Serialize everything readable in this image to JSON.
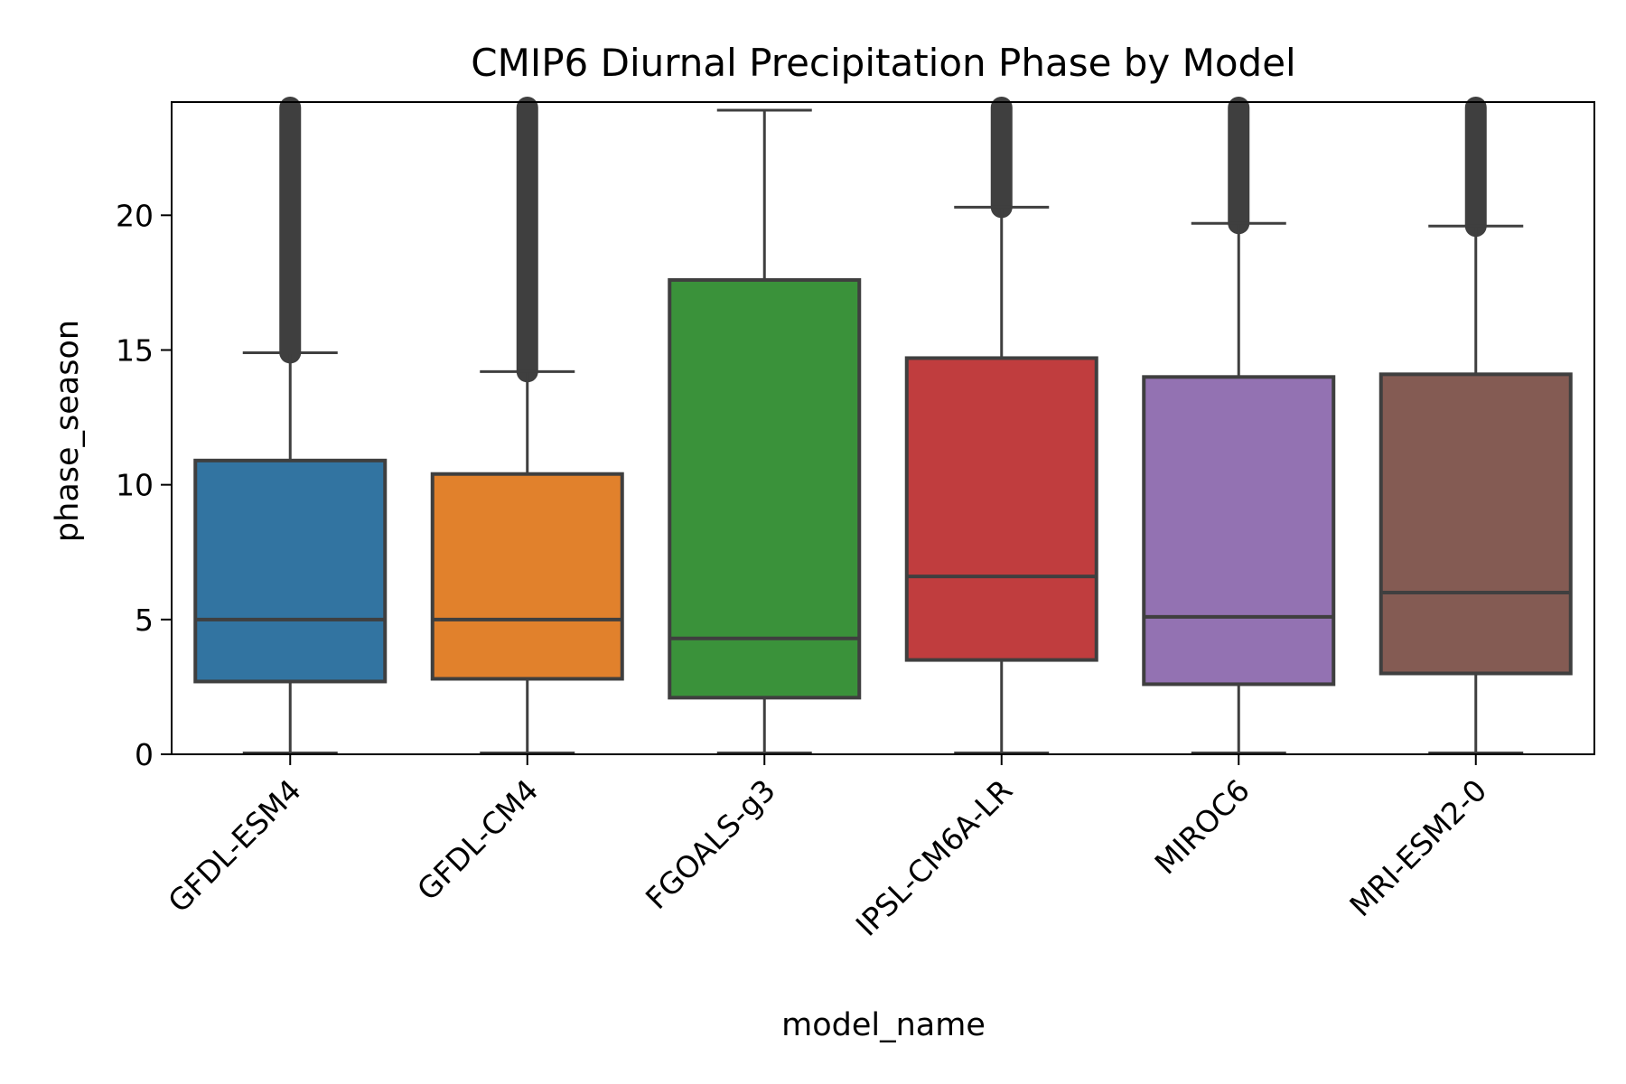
{
  "chart_data": {
    "type": "box",
    "title": "CMIP6 Diurnal Precipitation Phase by Model",
    "xlabel": "model_name",
    "ylabel": "phase_season",
    "ylim": [
      0,
      24.2
    ],
    "yticks": [
      0,
      5,
      10,
      15,
      20
    ],
    "grid": false,
    "legend": "none",
    "categories": [
      "GFDL-ESM4",
      "GFDL-CM4",
      "FGOALS-g3",
      "IPSL-CM6A-LR",
      "MIROC6",
      "MRI-ESM2-0"
    ],
    "boxes": [
      {
        "category": "GFDL-ESM4",
        "whisker_low": 0.05,
        "q1": 2.7,
        "median": 5.0,
        "q3": 10.9,
        "whisker_high": 14.9,
        "outliers_range": [
          14.9,
          24.0
        ],
        "color": "#3274a1"
      },
      {
        "category": "GFDL-CM4",
        "whisker_low": 0.05,
        "q1": 2.8,
        "median": 5.0,
        "q3": 10.4,
        "whisker_high": 14.2,
        "outliers_range": [
          14.2,
          24.0
        ],
        "color": "#e1812c"
      },
      {
        "category": "FGOALS-g3",
        "whisker_low": 0.05,
        "q1": 2.1,
        "median": 4.3,
        "q3": 17.6,
        "whisker_high": 23.9,
        "outliers_range": null,
        "color": "#3a923a"
      },
      {
        "category": "IPSL-CM6A-LR",
        "whisker_low": 0.05,
        "q1": 3.5,
        "median": 6.6,
        "q3": 14.7,
        "whisker_high": 20.3,
        "outliers_range": [
          20.3,
          24.0
        ],
        "color": "#c03d3e"
      },
      {
        "category": "MIROC6",
        "whisker_low": 0.05,
        "q1": 2.6,
        "median": 5.1,
        "q3": 14.0,
        "whisker_high": 19.7,
        "outliers_range": [
          19.7,
          24.0
        ],
        "color": "#9372b2"
      },
      {
        "category": "MRI-ESM2-0",
        "whisker_low": 0.05,
        "q1": 3.0,
        "median": 6.0,
        "q3": 14.1,
        "whisker_high": 19.6,
        "outliers_range": [
          19.6,
          24.0
        ],
        "color": "#845b53"
      }
    ],
    "line_color": "#3f3f3f"
  }
}
